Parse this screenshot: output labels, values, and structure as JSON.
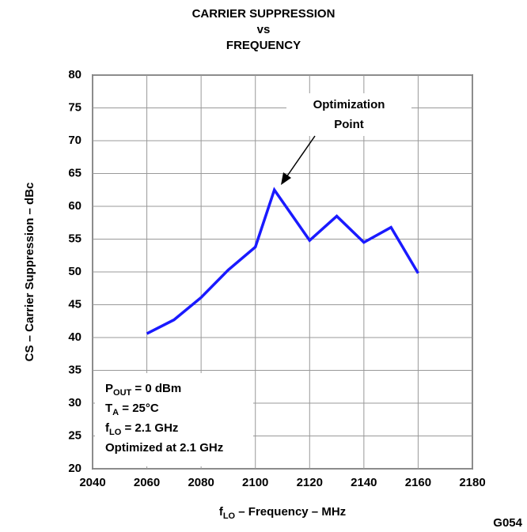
{
  "chart_data": {
    "type": "line",
    "title": [
      "CARRIER SUPPRESSION",
      "vs",
      "FREQUENCY"
    ],
    "x_label": {
      "base": "f",
      "sub": "LO",
      "rest": " – Frequency – MHz"
    },
    "y_label": "CS – Carrier Suppression – dBc",
    "x": [
      2060,
      2070,
      2080,
      2090,
      2100,
      2107,
      2120,
      2130,
      2140,
      2150,
      2160
    ],
    "series": [
      {
        "name": "CS",
        "color": "#1a1aff",
        "values": [
          40.6,
          42.7,
          46.1,
          50.3,
          53.8,
          62.5,
          54.8,
          58.5,
          54.5,
          56.8,
          49.8
        ]
      }
    ],
    "xlim": [
      2040,
      2180
    ],
    "xticks": [
      2040,
      2060,
      2080,
      2100,
      2120,
      2140,
      2160,
      2180
    ],
    "ylim": [
      20,
      80
    ],
    "yticks": [
      20,
      25,
      30,
      35,
      40,
      45,
      50,
      55,
      60,
      65,
      70,
      75,
      80
    ],
    "grid": true,
    "annotation": [
      "Optimization",
      "Point"
    ],
    "conditions": [
      {
        "base": "P",
        "sub": "OUT",
        "rest": " = 0 dBm"
      },
      {
        "base": "T",
        "sub": "A",
        "rest": " = 25°C"
      },
      {
        "base": "f",
        "sub": "LO",
        "rest": " = 2.1 GHz"
      },
      {
        "base": "Optimized at 2.1 GHz"
      }
    ],
    "figure_id": "G054"
  }
}
